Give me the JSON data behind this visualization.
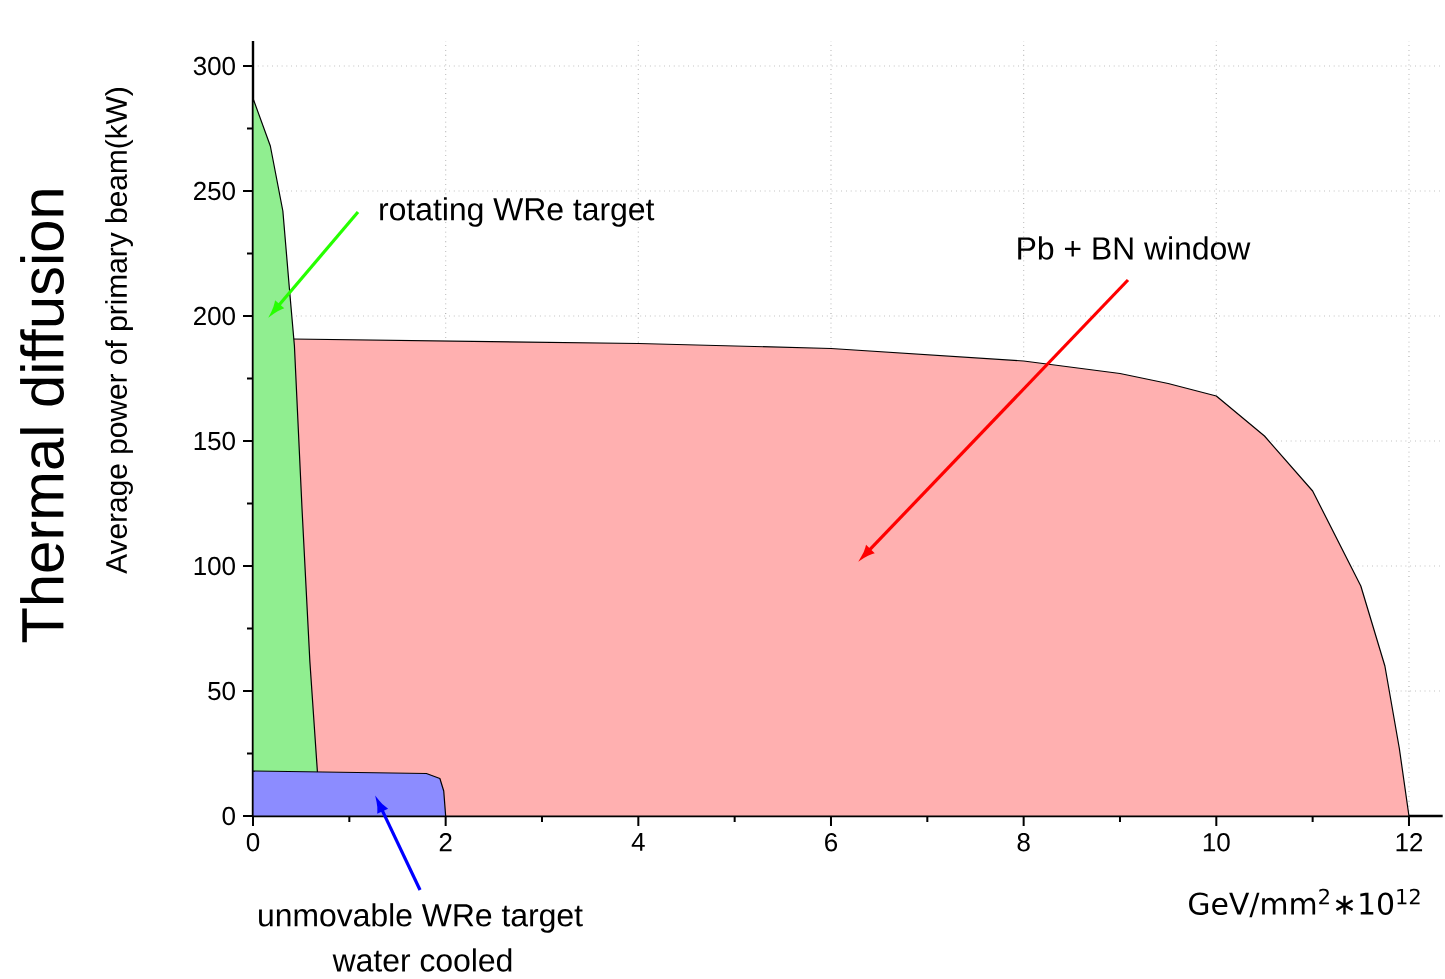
{
  "chart_data": {
    "type": "area",
    "xlabel": "GeV/mm$^{2}$∗10$^{12}$",
    "ylabel": "Average power of primary beam(kW)",
    "xlim": [
      0,
      12.35
    ],
    "ylim": [
      0,
      310
    ],
    "xticks": [
      0,
      2,
      4,
      6,
      8,
      10,
      12
    ],
    "yticks": [
      0,
      50,
      100,
      150,
      200,
      250,
      300
    ],
    "grid": true,
    "series": [
      {
        "color": "#ffb0b0",
        "x": [
          0,
          2,
          4,
          6,
          8,
          9,
          9.5,
          10,
          10.5,
          11,
          11.5,
          11.75,
          11.9,
          12
        ],
        "values": [
          191,
          190,
          189,
          187,
          182,
          177,
          173,
          168,
          152,
          130,
          92,
          60,
          27,
          0
        ]
      },
      {
        "color": "#90ee90",
        "x": [
          0,
          0.01,
          0.18,
          0.31,
          0.38,
          0.43,
          0.51,
          0.59,
          0.67,
          0.7
        ],
        "values": [
          287,
          286,
          268,
          242,
          210,
          188,
          122,
          62,
          null,
          0
        ]
      },
      {
        "color": "#8c8cff",
        "x": [
          0,
          1.8,
          1.94,
          1.98,
          2
        ],
        "values": [
          18,
          17,
          15,
          10,
          0
        ]
      }
    ],
    "annotations": [
      "Pb + BN window",
      "rotating WRe target",
      "unmovable WRe target",
      "water cooled",
      "Thermal diffusion"
    ]
  }
}
